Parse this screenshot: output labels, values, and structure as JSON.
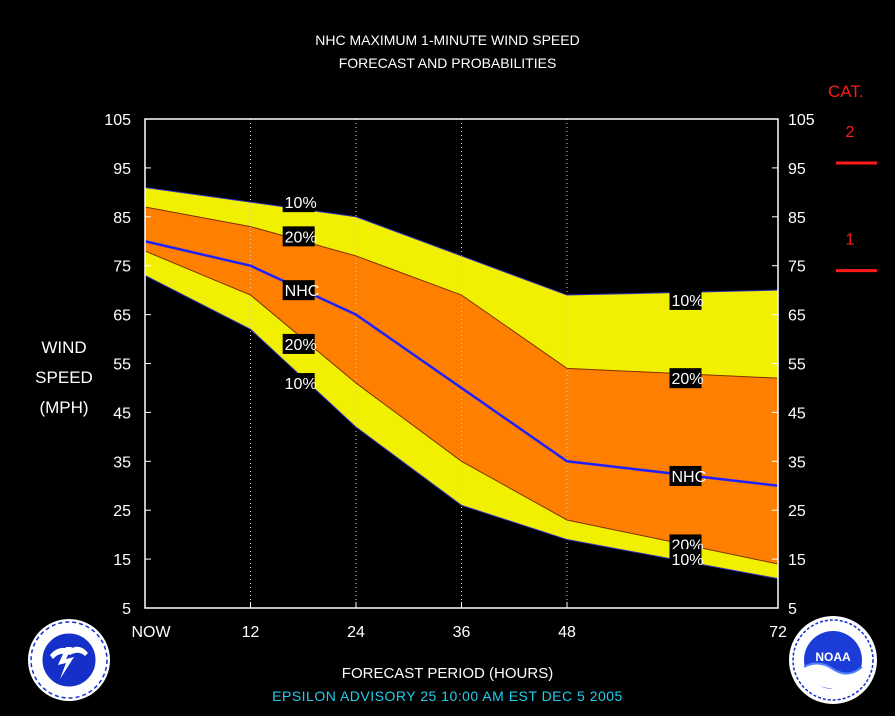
{
  "title_line1": "NHC MAXIMUM 1-MINUTE WIND SPEED",
  "title_line2": "FORECAST AND PROBABILITIES",
  "ylabel": [
    "WIND",
    "SPEED",
    "(MPH)"
  ],
  "xlabel": "FORECAST PERIOD (HOURS)",
  "advisory": "EPSILON   ADVISORY  25  10:00  AM  EST  DEC  5  2005",
  "category_title": "CAT.",
  "categories": [
    {
      "label": "2",
      "value": 96
    },
    {
      "label": "1",
      "value": 74
    }
  ],
  "colors": {
    "outer_band": "#f0f000",
    "inner_band": "#ff8000",
    "nhc_line": "#2020ff",
    "category": "#ff1a1a",
    "advisory_text": "#22ccee"
  },
  "logos": {
    "left": "nws-logo",
    "right": "noaa-logo",
    "right_text": "NOAA"
  },
  "chart_data": {
    "type": "area",
    "x": [
      0,
      12,
      24,
      36,
      48,
      72
    ],
    "xticklabels": [
      "NOW",
      "12",
      "24",
      "36",
      "48",
      "72"
    ],
    "xlim": [
      0,
      72
    ],
    "ylim": [
      5,
      105
    ],
    "yticks": [
      5,
      15,
      25,
      35,
      45,
      55,
      65,
      75,
      85,
      95,
      105
    ],
    "grid_x": true,
    "series": [
      {
        "name": "10%",
        "values": [
          91,
          88,
          85,
          77,
          69,
          70
        ]
      },
      {
        "name": "20%",
        "values": [
          87,
          83,
          77,
          69,
          54,
          52
        ]
      },
      {
        "name": "NHC",
        "values": [
          80,
          75,
          65,
          50,
          35,
          30
        ]
      },
      {
        "name": "20%",
        "values": [
          78,
          69,
          51,
          35,
          23,
          14
        ]
      },
      {
        "name": "10%",
        "values": [
          73,
          62,
          42,
          26,
          19,
          11
        ]
      }
    ],
    "labels": [
      {
        "text": "10%",
        "x": 16,
        "y": 88
      },
      {
        "text": "20%",
        "x": 16,
        "y": 81
      },
      {
        "text": "NHC",
        "x": 16,
        "y": 70
      },
      {
        "text": "20%",
        "x": 16,
        "y": 59
      },
      {
        "text": "10%",
        "x": 16,
        "y": 51
      },
      {
        "text": "10%",
        "x": 60,
        "y": 68
      },
      {
        "text": "20%",
        "x": 60,
        "y": 52
      },
      {
        "text": "NHC",
        "x": 60,
        "y": 32
      },
      {
        "text": "20%",
        "x": 60,
        "y": 18
      },
      {
        "text": "10%",
        "x": 60,
        "y": 15
      }
    ]
  }
}
